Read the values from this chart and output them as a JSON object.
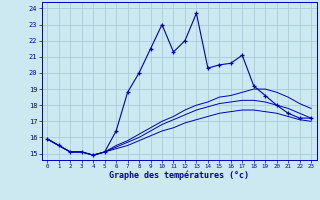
{
  "xlabel": "Graphe des températures (°c)",
  "bg_color": "#cce8f0",
  "grid_color": "#aaccda",
  "line_color": "#0000bb",
  "hours": [
    0,
    1,
    2,
    3,
    4,
    5,
    6,
    7,
    8,
    9,
    10,
    11,
    12,
    13,
    14,
    15,
    16,
    17,
    18,
    19,
    20,
    21,
    22,
    23
  ],
  "temp_main": [
    15.9,
    15.5,
    15.1,
    15.1,
    14.9,
    15.1,
    16.4,
    18.8,
    20.0,
    21.5,
    23.0,
    21.3,
    22.0,
    23.7,
    20.3,
    20.5,
    20.6,
    21.1,
    19.2,
    18.6,
    18.0,
    17.5,
    17.2,
    17.2
  ],
  "temp_line2": [
    15.9,
    15.5,
    15.1,
    15.1,
    14.9,
    15.1,
    15.5,
    15.8,
    16.2,
    16.6,
    17.0,
    17.3,
    17.7,
    18.0,
    18.2,
    18.5,
    18.6,
    18.8,
    19.0,
    19.0,
    18.8,
    18.5,
    18.1,
    17.8
  ],
  "temp_line3": [
    15.9,
    15.5,
    15.1,
    15.1,
    14.9,
    15.1,
    15.4,
    15.7,
    16.0,
    16.4,
    16.8,
    17.1,
    17.4,
    17.7,
    17.9,
    18.1,
    18.2,
    18.3,
    18.3,
    18.2,
    18.0,
    17.8,
    17.5,
    17.2
  ],
  "temp_line4": [
    15.9,
    15.5,
    15.1,
    15.1,
    14.9,
    15.1,
    15.3,
    15.5,
    15.8,
    16.1,
    16.4,
    16.6,
    16.9,
    17.1,
    17.3,
    17.5,
    17.6,
    17.7,
    17.7,
    17.6,
    17.5,
    17.3,
    17.1,
    17.0
  ],
  "ylim": [
    14.6,
    24.4
  ],
  "xlim": [
    -0.5,
    23.5
  ],
  "yticks": [
    15,
    16,
    17,
    18,
    19,
    20,
    21,
    22,
    23,
    24
  ],
  "xticks": [
    0,
    1,
    2,
    3,
    4,
    5,
    6,
    7,
    8,
    9,
    10,
    11,
    12,
    13,
    14,
    15,
    16,
    17,
    18,
    19,
    20,
    21,
    22,
    23
  ]
}
